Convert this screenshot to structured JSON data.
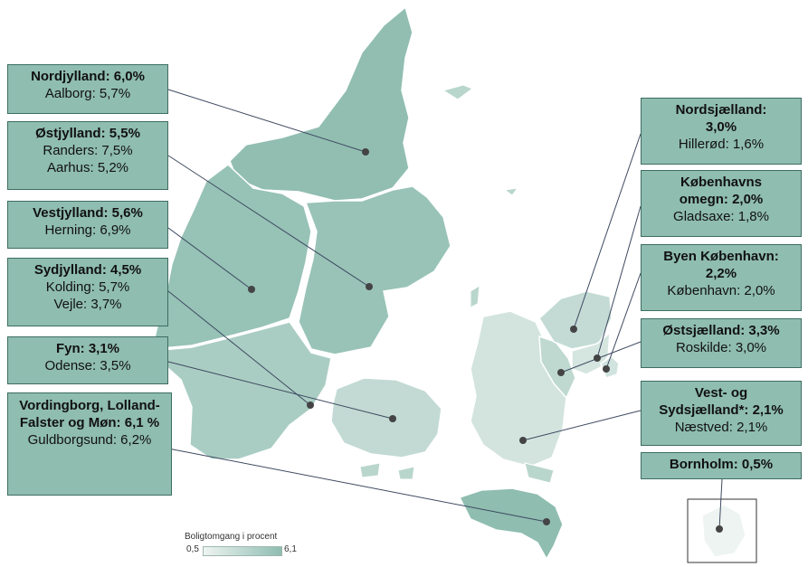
{
  "colors": {
    "scale_min": "#eef4f2",
    "scale_max": "#8fbdb0",
    "land_border": "#ffffff",
    "leader": "#3d4a60",
    "dot": "#444444"
  },
  "regions": [
    {
      "id": "nordjylland",
      "name": "Nordjylland: 6,0%",
      "city": "Aalborg: 5,7%",
      "value": 6.0
    },
    {
      "id": "ostjylland",
      "name": "Østjylland: 5,5%",
      "city": "Randers: 7,5%\nAarhus: 5,2%",
      "value": 5.5
    },
    {
      "id": "vestjylland",
      "name": "Vestjylland: 5,6%",
      "city": "Herning: 6,9%",
      "value": 5.6
    },
    {
      "id": "sydjylland",
      "name": "Sydjylland: 4,5%",
      "city": "Kolding: 5,7%\nVejle: 3,7%",
      "value": 4.5
    },
    {
      "id": "fyn",
      "name": "Fyn: 3,1%",
      "city": "Odense: 3,5%",
      "value": 3.1
    },
    {
      "id": "vordingborg",
      "name": "Vordingborg, Lolland-Falster og Møn: 6,1 %",
      "city": "Guldborgsund: 6,2%",
      "value": 6.1
    },
    {
      "id": "nordsjaelland",
      "name": "Nordsjælland: 3,0%",
      "city": "Hillerød: 1,6%",
      "value": 3.0
    },
    {
      "id": "kbh-omegn",
      "name": "Københavns omegn: 2,0%",
      "city": "Gladsaxe: 1,8%",
      "value": 2.0
    },
    {
      "id": "byen-kbh",
      "name": "Byen København: 2,2%",
      "city": "København: 2,0%",
      "value": 2.2
    },
    {
      "id": "ostsjaelland",
      "name": "Østsjælland: 3,3%",
      "city": "Roskilde: 3,0%",
      "value": 3.3
    },
    {
      "id": "vest-sydsjaelland",
      "name": "Vest- og Sydsjælland*: 2,1%",
      "city": "Næstved: 2,1%",
      "value": 2.1
    },
    {
      "id": "bornholm",
      "name": "Bornholm: 0,5%",
      "city": "",
      "value": 0.5
    }
  ],
  "legend": {
    "title": "Boligtomgang i procent",
    "min_label": "0,5",
    "max_label": "6,1",
    "min": 0.5,
    "max": 6.1
  }
}
